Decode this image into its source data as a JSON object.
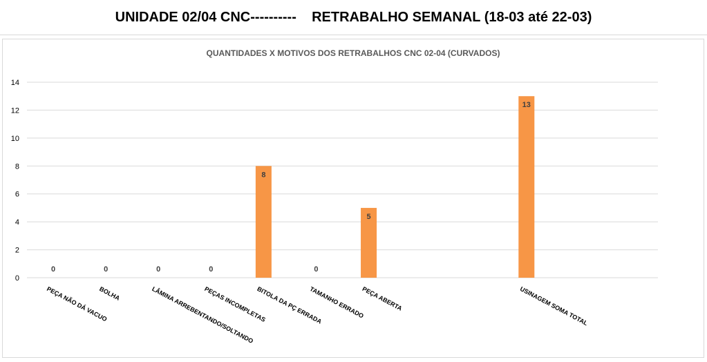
{
  "header": {
    "title": "UNIDADE 02/04 CNC----------    RETRABALHO SEMANAL (18-03 até 22-03)"
  },
  "chart_data": {
    "type": "bar",
    "title": "QUANTIDADES X MOTIVOS DOS RETRABALHOS CNC 02-04 (CURVADOS)",
    "xlabel": "",
    "ylabel": "",
    "categories": [
      "PEÇA NÃO DÁ VACUO",
      "BOLHA",
      "LÂMINA ARREBENTANDO/SOLTANDO",
      "PEÇAS INCOMPLETAS",
      "BITOLA DA PÇ ERRADA",
      "TAMANHO ERRADO",
      "PEÇA ABERTA",
      "",
      "",
      "USINAGEM SOMA TOTAL",
      "",
      ""
    ],
    "values": [
      0,
      0,
      0,
      0,
      8,
      0,
      5,
      null,
      null,
      13,
      null,
      null
    ],
    "data_labels": [
      "0",
      "0",
      "0",
      "0",
      "8",
      "0",
      "5",
      "",
      "",
      "13",
      "",
      ""
    ],
    "yticks": [
      0,
      2,
      4,
      6,
      8,
      10,
      12,
      14
    ],
    "ylim": [
      0,
      14
    ],
    "grid": true,
    "legend": "none",
    "bar_color": "#f79646",
    "grid_color": "#d9d9d9",
    "text_color": "#404040"
  }
}
